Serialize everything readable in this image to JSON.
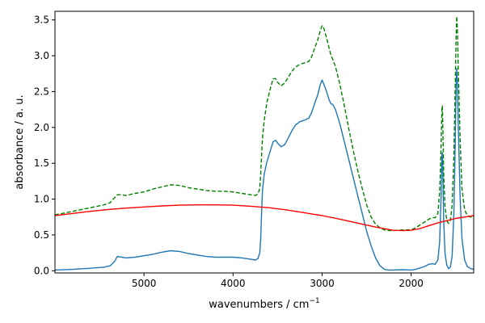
{
  "chart_data": {
    "type": "line",
    "xlabel": "wavenumbers / cm",
    "xlabel_superscript": "−1",
    "ylabel": "absorbance / a. u.",
    "xlim": [
      5999.5,
      1298
    ],
    "xaxis_reversed": true,
    "ylim": [
      -0.03,
      3.62
    ],
    "grid": false,
    "x_ticks": [
      {
        "value": 5000,
        "label": "5000"
      },
      {
        "value": 4000,
        "label": "4000"
      },
      {
        "value": 3000,
        "label": "3000"
      },
      {
        "value": 2000,
        "label": "2000"
      }
    ],
    "y_ticks": [
      {
        "value": 0.0,
        "label": "0.0"
      },
      {
        "value": 0.5,
        "label": "0.5"
      },
      {
        "value": 1.0,
        "label": "1.0"
      },
      {
        "value": 1.5,
        "label": "1.5"
      },
      {
        "value": 2.0,
        "label": "2.0"
      },
      {
        "value": 2.5,
        "label": "2.5"
      },
      {
        "value": 3.0,
        "label": "3.0"
      },
      {
        "value": 3.5,
        "label": "3.5"
      }
    ],
    "series": [
      {
        "color": "#1f77b4",
        "style": "solid",
        "points": [
          [
            6000,
            0.01
          ],
          [
            5800,
            0.02
          ],
          [
            5600,
            0.035
          ],
          [
            5450,
            0.05
          ],
          [
            5380,
            0.07
          ],
          [
            5330,
            0.13
          ],
          [
            5300,
            0.2
          ],
          [
            5250,
            0.19
          ],
          [
            5200,
            0.18
          ],
          [
            5100,
            0.19
          ],
          [
            5000,
            0.21
          ],
          [
            4900,
            0.23
          ],
          [
            4800,
            0.26
          ],
          [
            4700,
            0.28
          ],
          [
            4600,
            0.27
          ],
          [
            4500,
            0.24
          ],
          [
            4400,
            0.22
          ],
          [
            4300,
            0.2
          ],
          [
            4200,
            0.19
          ],
          [
            4100,
            0.19
          ],
          [
            4000,
            0.19
          ],
          [
            3900,
            0.18
          ],
          [
            3800,
            0.16
          ],
          [
            3750,
            0.15
          ],
          [
            3720,
            0.17
          ],
          [
            3700,
            0.25
          ],
          [
            3690,
            0.45
          ],
          [
            3680,
            0.8
          ],
          [
            3670,
            1.12
          ],
          [
            3650,
            1.35
          ],
          [
            3620,
            1.52
          ],
          [
            3580,
            1.68
          ],
          [
            3550,
            1.8
          ],
          [
            3520,
            1.82
          ],
          [
            3500,
            1.78
          ],
          [
            3460,
            1.73
          ],
          [
            3420,
            1.76
          ],
          [
            3380,
            1.85
          ],
          [
            3340,
            1.95
          ],
          [
            3300,
            2.03
          ],
          [
            3250,
            2.08
          ],
          [
            3200,
            2.1
          ],
          [
            3150,
            2.13
          ],
          [
            3120,
            2.2
          ],
          [
            3080,
            2.35
          ],
          [
            3050,
            2.45
          ],
          [
            3020,
            2.6
          ],
          [
            3000,
            2.66
          ],
          [
            2980,
            2.6
          ],
          [
            2950,
            2.5
          ],
          [
            2920,
            2.38
          ],
          [
            2900,
            2.33
          ],
          [
            2880,
            2.32
          ],
          [
            2850,
            2.25
          ],
          [
            2800,
            2.05
          ],
          [
            2750,
            1.8
          ],
          [
            2700,
            1.55
          ],
          [
            2650,
            1.3
          ],
          [
            2600,
            1.05
          ],
          [
            2550,
            0.8
          ],
          [
            2500,
            0.55
          ],
          [
            2450,
            0.35
          ],
          [
            2400,
            0.18
          ],
          [
            2350,
            0.07
          ],
          [
            2300,
            0.02
          ],
          [
            2250,
            0.01
          ],
          [
            2200,
            0.01
          ],
          [
            2100,
            0.015
          ],
          [
            2000,
            0.01
          ],
          [
            1950,
            0.02
          ],
          [
            1900,
            0.04
          ],
          [
            1850,
            0.06
          ],
          [
            1800,
            0.09
          ],
          [
            1760,
            0.1
          ],
          [
            1730,
            0.09
          ],
          [
            1700,
            0.15
          ],
          [
            1680,
            0.4
          ],
          [
            1665,
            1.0
          ],
          [
            1655,
            1.6
          ],
          [
            1650,
            1.65
          ],
          [
            1645,
            1.4
          ],
          [
            1635,
            0.7
          ],
          [
            1620,
            0.25
          ],
          [
            1600,
            0.08
          ],
          [
            1580,
            0.03
          ],
          [
            1560,
            0.05
          ],
          [
            1540,
            0.2
          ],
          [
            1520,
            0.8
          ],
          [
            1505,
            1.8
          ],
          [
            1495,
            2.6
          ],
          [
            1488,
            2.82
          ],
          [
            1480,
            2.6
          ],
          [
            1470,
            2.0
          ],
          [
            1450,
            1.0
          ],
          [
            1430,
            0.45
          ],
          [
            1400,
            0.15
          ],
          [
            1370,
            0.06
          ],
          [
            1330,
            0.03
          ],
          [
            1298,
            0.02
          ]
        ]
      },
      {
        "color": "#008000",
        "style": "dashed",
        "points": [
          [
            6000,
            0.78
          ],
          [
            5800,
            0.83
          ],
          [
            5600,
            0.88
          ],
          [
            5450,
            0.92
          ],
          [
            5380,
            0.95
          ],
          [
            5330,
            1.02
          ],
          [
            5300,
            1.06
          ],
          [
            5250,
            1.06
          ],
          [
            5200,
            1.05
          ],
          [
            5100,
            1.08
          ],
          [
            5000,
            1.1
          ],
          [
            4900,
            1.14
          ],
          [
            4800,
            1.17
          ],
          [
            4700,
            1.2
          ],
          [
            4600,
            1.19
          ],
          [
            4500,
            1.16
          ],
          [
            4400,
            1.14
          ],
          [
            4300,
            1.12
          ],
          [
            4200,
            1.11
          ],
          [
            4100,
            1.11
          ],
          [
            4000,
            1.1
          ],
          [
            3900,
            1.08
          ],
          [
            3800,
            1.06
          ],
          [
            3750,
            1.05
          ],
          [
            3720,
            1.07
          ],
          [
            3700,
            1.15
          ],
          [
            3690,
            1.35
          ],
          [
            3680,
            1.6
          ],
          [
            3670,
            1.85
          ],
          [
            3650,
            2.1
          ],
          [
            3620,
            2.35
          ],
          [
            3580,
            2.55
          ],
          [
            3550,
            2.68
          ],
          [
            3520,
            2.68
          ],
          [
            3500,
            2.63
          ],
          [
            3460,
            2.58
          ],
          [
            3420,
            2.62
          ],
          [
            3380,
            2.7
          ],
          [
            3340,
            2.78
          ],
          [
            3300,
            2.84
          ],
          [
            3250,
            2.88
          ],
          [
            3200,
            2.9
          ],
          [
            3150,
            2.92
          ],
          [
            3120,
            2.98
          ],
          [
            3080,
            3.12
          ],
          [
            3050,
            3.22
          ],
          [
            3020,
            3.35
          ],
          [
            3000,
            3.42
          ],
          [
            2980,
            3.38
          ],
          [
            2950,
            3.25
          ],
          [
            2920,
            3.1
          ],
          [
            2900,
            3.0
          ],
          [
            2880,
            2.95
          ],
          [
            2850,
            2.85
          ],
          [
            2800,
            2.6
          ],
          [
            2750,
            2.3
          ],
          [
            2700,
            1.98
          ],
          [
            2650,
            1.68
          ],
          [
            2600,
            1.4
          ],
          [
            2550,
            1.15
          ],
          [
            2500,
            0.92
          ],
          [
            2450,
            0.75
          ],
          [
            2400,
            0.65
          ],
          [
            2350,
            0.6
          ],
          [
            2300,
            0.57
          ],
          [
            2250,
            0.56
          ],
          [
            2200,
            0.56
          ],
          [
            2100,
            0.57
          ],
          [
            2000,
            0.57
          ],
          [
            1950,
            0.6
          ],
          [
            1900,
            0.64
          ],
          [
            1850,
            0.68
          ],
          [
            1800,
            0.72
          ],
          [
            1760,
            0.74
          ],
          [
            1730,
            0.74
          ],
          [
            1700,
            0.8
          ],
          [
            1680,
            1.1
          ],
          [
            1665,
            1.7
          ],
          [
            1655,
            2.25
          ],
          [
            1650,
            2.3
          ],
          [
            1645,
            2.05
          ],
          [
            1635,
            1.35
          ],
          [
            1620,
            0.9
          ],
          [
            1600,
            0.7
          ],
          [
            1580,
            0.66
          ],
          [
            1560,
            0.7
          ],
          [
            1540,
            0.9
          ],
          [
            1520,
            1.6
          ],
          [
            1505,
            2.6
          ],
          [
            1495,
            3.3
          ],
          [
            1488,
            3.55
          ],
          [
            1480,
            3.35
          ],
          [
            1470,
            2.8
          ],
          [
            1450,
            1.8
          ],
          [
            1430,
            1.15
          ],
          [
            1400,
            0.85
          ],
          [
            1370,
            0.77
          ],
          [
            1330,
            0.75
          ],
          [
            1298,
            0.75
          ]
        ]
      },
      {
        "color": "#ff0000",
        "style": "solid",
        "points": [
          [
            6000,
            0.77
          ],
          [
            5800,
            0.8
          ],
          [
            5600,
            0.83
          ],
          [
            5400,
            0.855
          ],
          [
            5200,
            0.875
          ],
          [
            5000,
            0.89
          ],
          [
            4800,
            0.905
          ],
          [
            4600,
            0.915
          ],
          [
            4400,
            0.92
          ],
          [
            4200,
            0.92
          ],
          [
            4000,
            0.915
          ],
          [
            3800,
            0.9
          ],
          [
            3600,
            0.88
          ],
          [
            3400,
            0.85
          ],
          [
            3200,
            0.81
          ],
          [
            3000,
            0.77
          ],
          [
            2800,
            0.72
          ],
          [
            2600,
            0.665
          ],
          [
            2400,
            0.61
          ],
          [
            2200,
            0.565
          ],
          [
            2100,
            0.56
          ],
          [
            2000,
            0.565
          ],
          [
            1900,
            0.59
          ],
          [
            1800,
            0.63
          ],
          [
            1700,
            0.67
          ],
          [
            1600,
            0.7
          ],
          [
            1500,
            0.73
          ],
          [
            1400,
            0.75
          ],
          [
            1298,
            0.77
          ]
        ]
      }
    ]
  }
}
